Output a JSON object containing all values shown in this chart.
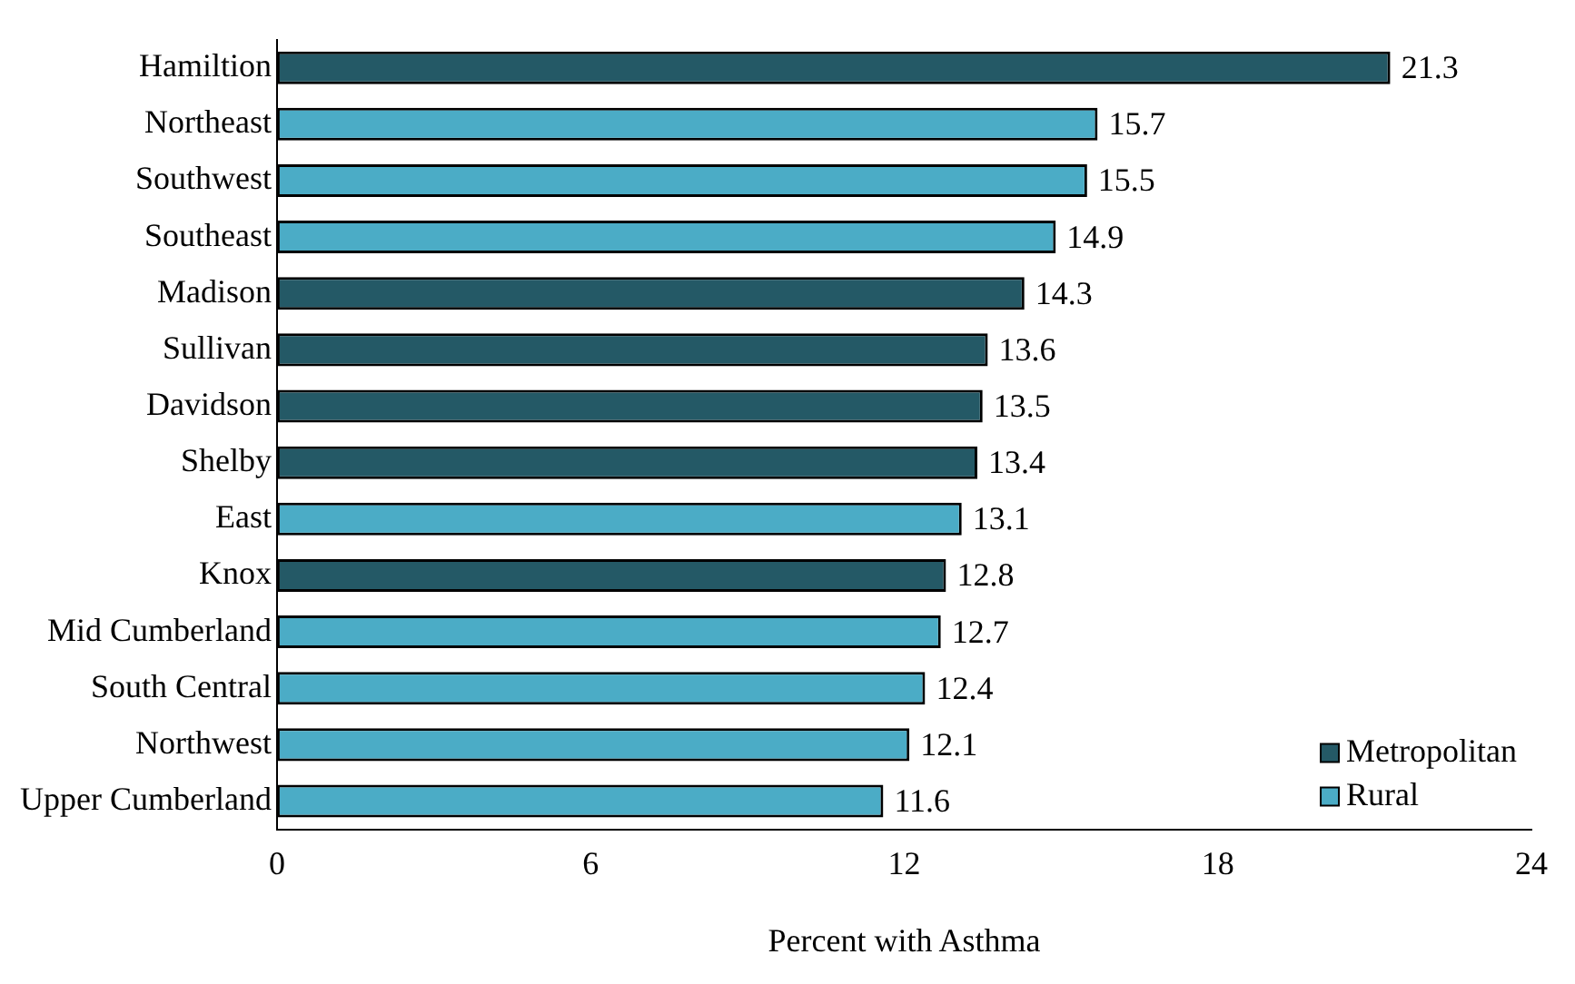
{
  "chart_data": {
    "type": "bar",
    "orientation": "horizontal",
    "stacked": true,
    "xlabel": "Percent with Asthma",
    "categories": [
      "Hamiltion",
      "Northeast",
      "Southwest",
      "Southeast",
      "Madison",
      "Sullivan",
      "Davidson",
      "Shelby",
      "East",
      "Knox",
      "Mid Cumberland",
      "South Central",
      "Northwest",
      "Upper Cumberland"
    ],
    "series": [
      {
        "name": "Metropolitan",
        "color": "#245966",
        "values": [
          21.3,
          null,
          null,
          null,
          14.3,
          13.6,
          13.5,
          13.4,
          null,
          12.8,
          null,
          null,
          null,
          null
        ]
      },
      {
        "name": "Rural",
        "color": "#4bacc6",
        "values": [
          null,
          15.7,
          15.5,
          14.9,
          null,
          null,
          null,
          null,
          13.1,
          null,
          12.7,
          12.4,
          12.1,
          11.6
        ]
      }
    ],
    "xlim": [
      0,
      24
    ],
    "xticks": [
      0,
      6,
      12,
      18,
      24
    ],
    "grid": false,
    "legend": "bottom right",
    "data_labels": true
  }
}
